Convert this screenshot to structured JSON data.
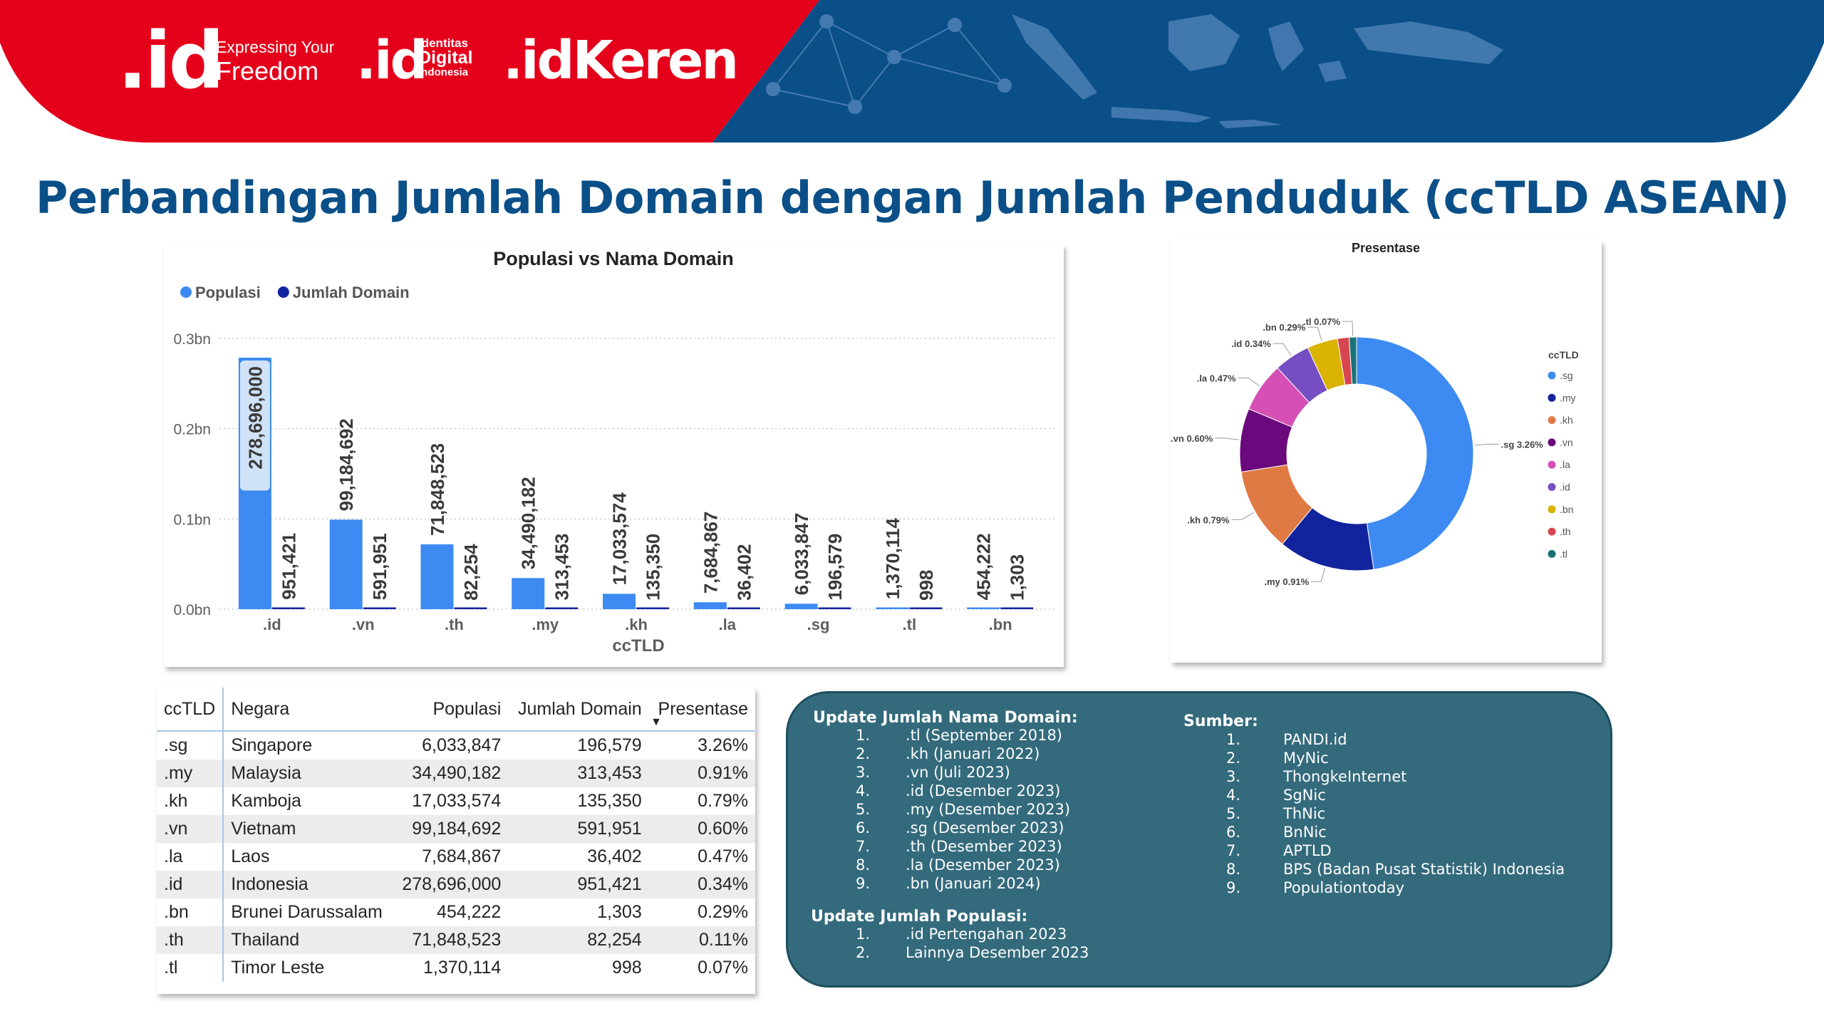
{
  "header": {
    "logo_main": ".id",
    "logo_main_tagline_1": "Expressing Your",
    "logo_main_tagline_2": "Freedom",
    "logo_secondary": ".id",
    "logo_secondary_lines": [
      "Identitas",
      "Digital",
      "Indonesia"
    ],
    "logo_keren": ".idKeren",
    "colors": {
      "red": "#e4001b",
      "navy": "#0a4f88"
    }
  },
  "page_title": "Perbandingan Jumlah Domain dengan Jumlah Penduduk (ccTLD ASEAN)",
  "chart_data": [
    {
      "type": "bar",
      "title": "Populasi vs Nama Domain",
      "xlabel": "ccTLD",
      "ylabel": "",
      "ylim": [
        0,
        300000000
      ],
      "yticks": [
        "0.0bn",
        "0.1bn",
        "0.2bn",
        "0.3bn"
      ],
      "grid": true,
      "legend_position": "top-left",
      "categories": [
        ".id",
        ".vn",
        ".th",
        ".my",
        ".kh",
        ".la",
        ".sg",
        ".tl",
        ".bn"
      ],
      "series": [
        {
          "name": "Populasi",
          "color": "#3d8bf2",
          "values": [
            278696000,
            99184692,
            71848523,
            34490182,
            17033574,
            7684867,
            6033847,
            1370114,
            454222
          ],
          "labels": [
            "278,696,000",
            "99,184,692",
            "71,848,523",
            "34,490,182",
            "17,033,574",
            "7,684,867",
            "6,033,847",
            "1,370,114",
            "454,222"
          ]
        },
        {
          "name": "Jumlah Domain",
          "color": "#12239e",
          "values": [
            951421,
            591951,
            82254,
            313453,
            135350,
            36402,
            196579,
            998,
            1303
          ],
          "labels": [
            "951,421",
            "591,951",
            "82,254",
            "313,453",
            "135,350",
            "36,402",
            "196,579",
            "998",
            "1,303"
          ]
        }
      ]
    },
    {
      "type": "pie",
      "title": "Presentase",
      "legend_title": "ccTLD",
      "legend_position": "right",
      "slices": [
        {
          "label": ".sg",
          "value": 3.26,
          "display": ".sg 3.26%",
          "color": "#3d8bf2"
        },
        {
          "label": ".my",
          "value": 0.91,
          "display": ".my 0.91%",
          "color": "#12239e"
        },
        {
          "label": ".kh",
          "value": 0.79,
          "display": ".kh 0.79%",
          "color": "#e07a45"
        },
        {
          "label": ".vn",
          "value": 0.6,
          "display": ".vn 0.60%",
          "color": "#6b087d"
        },
        {
          "label": ".la",
          "value": 0.47,
          "display": ".la 0.47%",
          "color": "#d64fb5"
        },
        {
          "label": ".id",
          "value": 0.34,
          "display": ".id 0.34%",
          "color": "#744ec2"
        },
        {
          "label": ".bn",
          "value": 0.29,
          "display": ".bn 0.29%",
          "color": "#d9b300"
        },
        {
          "label": ".th",
          "value": 0.11,
          "display": "",
          "color": "#d64550"
        },
        {
          "label": ".tl",
          "value": 0.07,
          "display": ".tl 0.07%",
          "color": "#197278"
        }
      ]
    }
  ],
  "table": {
    "headers": [
      "ccTLD",
      "Negara",
      "Populasi",
      "Jumlah Domain",
      "Presentase"
    ],
    "sort_icon": "sort-descending-icon",
    "rows": [
      [
        ".sg",
        "Singapore",
        "6,033,847",
        "196,579",
        "3.26%"
      ],
      [
        ".my",
        "Malaysia",
        "34,490,182",
        "313,453",
        "0.91%"
      ],
      [
        ".kh",
        "Kamboja",
        "17,033,574",
        "135,350",
        "0.79%"
      ],
      [
        ".vn",
        "Vietnam",
        "99,184,692",
        "591,951",
        "0.60%"
      ],
      [
        ".la",
        "Laos",
        "7,684,867",
        "36,402",
        "0.47%"
      ],
      [
        ".id",
        "Indonesia",
        "278,696,000",
        "951,421",
        "0.34%"
      ],
      [
        ".bn",
        "Brunei Darussalam",
        "454,222",
        "1,303",
        "0.29%"
      ],
      [
        ".th",
        "Thailand",
        "71,848,523",
        "82,254",
        "0.11%"
      ],
      [
        ".tl",
        "Timor Leste",
        "1,370,114",
        "998",
        "0.07%"
      ]
    ]
  },
  "info": {
    "update_domain_title": "Update Jumlah Nama Domain:",
    "update_domain_items": [
      ".tl (September 2018)",
      ".kh (Januari 2022)",
      ".vn (Juli 2023)",
      ".id (Desember 2023)",
      ".my (Desember 2023)",
      ".sg (Desember 2023)",
      ".th (Desember 2023)",
      ".la (Desember 2023)",
      ".bn (Januari 2024)"
    ],
    "update_pop_title": "Update Jumlah Populasi:",
    "update_pop_items": [
      ".id Pertengahan 2023",
      "Lainnya Desember 2023"
    ],
    "sources_title": "Sumber:",
    "sources_items": [
      "PANDI.id",
      "MyNic",
      "ThongkeInternet",
      "SgNic",
      "ThNic",
      "BnNic",
      " APTLD",
      "BPS (Badan Pusat Statistik) Indonesia",
      "Populationtoday"
    ]
  }
}
